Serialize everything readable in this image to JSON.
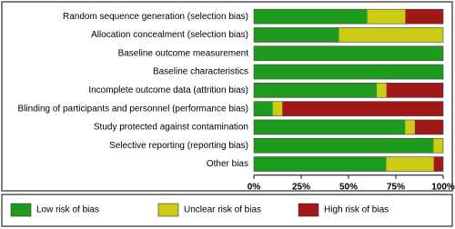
{
  "chart_data": {
    "type": "stacked-barh",
    "categories": [
      "Random sequence generation (selection bias)",
      "Allocation concealment (selection bias)",
      "Baseline outcome measurement",
      "Baseline characteristics",
      "Incomplete outcome data (attrition bias)",
      "Blinding of participants and personnel (performance bias)",
      "Study protected against contamination",
      "Selective reporting (reporting bias)",
      "Other bias"
    ],
    "series": [
      {
        "name": "Low risk of bias",
        "color": "#1e9a1e",
        "values": [
          60,
          45,
          100,
          100,
          65,
          10,
          80,
          95,
          70
        ]
      },
      {
        "name": "Unclear risk of bias",
        "color": "#cccc14",
        "values": [
          20,
          55,
          0,
          0,
          5,
          5,
          5,
          5,
          25
        ]
      },
      {
        "name": "High risk of bias",
        "color": "#a01818",
        "values": [
          20,
          0,
          0,
          0,
          30,
          85,
          15,
          0,
          5
        ]
      }
    ],
    "xlim": [
      0,
      100
    ],
    "xticks": [
      {
        "value": 0,
        "label": "0%"
      },
      {
        "value": 25,
        "label": "25%"
      },
      {
        "value": 50,
        "label": "50%"
      },
      {
        "value": 75,
        "label": "75%"
      },
      {
        "value": 100,
        "label": "100%"
      }
    ],
    "legend": "bottom"
  }
}
